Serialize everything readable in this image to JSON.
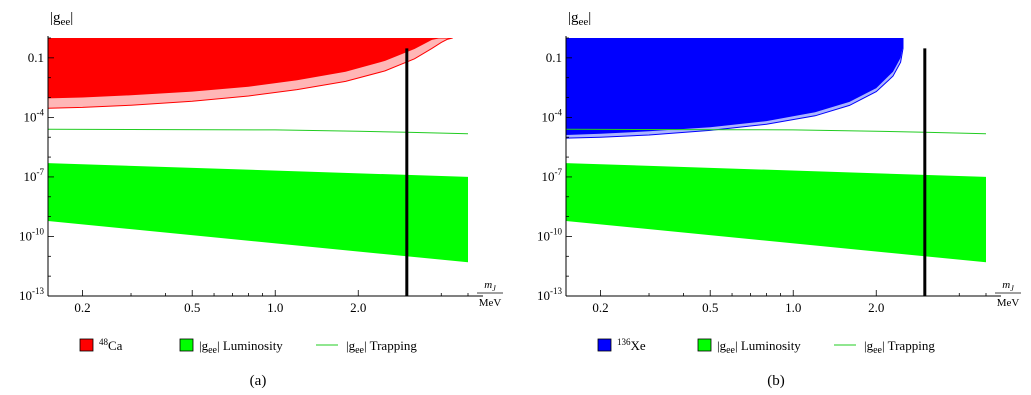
{
  "chart_data": [
    {
      "type": "area",
      "panel_label": "(a)",
      "ylabel": "|g_ee|",
      "xlabel": "m_J",
      "xunit": "MeV",
      "x_scale": "log",
      "y_scale": "log",
      "xlim": [
        0.15,
        5.0
      ],
      "ylim": [
        1e-13,
        1.0
      ],
      "x_ticks": [
        "0.2",
        "0.5",
        "1.0",
        "2.0"
      ],
      "x_tick_values": [
        0.2,
        0.5,
        1.0,
        2.0
      ],
      "y_ticks": [
        "0.1",
        "10^-4",
        "10^-7",
        "10^-10",
        "10^-13"
      ],
      "vertical_line_x": 3.0,
      "series": [
        {
          "name": "48Ca",
          "color": "#ff0000",
          "light_color": "#ffb6b6",
          "x": [
            0.15,
            0.2,
            0.3,
            0.5,
            0.8,
            1.2,
            1.8,
            2.5,
            3.2,
            3.7,
            4.0,
            4.2,
            4.4
          ],
          "lower": [
            0.00029,
            0.00032,
            0.00041,
            0.00065,
            0.0012,
            0.0025,
            0.0065,
            0.022,
            0.09,
            0.3,
            0.6,
            0.85,
            1.0
          ],
          "inner": [
            0.0009,
            0.001,
            0.0013,
            0.002,
            0.0035,
            0.0075,
            0.02,
            0.07,
            0.28,
            0.8,
            1.0,
            1.0,
            1.0
          ],
          "upper": [
            1.0,
            1.0,
            1.0,
            1.0,
            1.0,
            1.0,
            1.0,
            1.0,
            1.0,
            1.0,
            1.0,
            1.0,
            1.0
          ]
        },
        {
          "name": "|g_ee| Luminosity",
          "color": "#00ff00",
          "x": [
            0.15,
            5.0
          ],
          "lower": [
            6e-10,
            5e-12
          ],
          "upper": [
            5e-07,
            1e-07
          ]
        },
        {
          "name": "|g_ee| Trapping",
          "color": "#22cc22",
          "x": [
            0.15,
            0.3,
            0.6,
            1.0,
            2.0,
            3.0,
            5.0
          ],
          "values": [
            2.5e-05,
            2.45e-05,
            2.4e-05,
            2.35e-05,
            2e-05,
            1.8e-05,
            1.5e-05
          ]
        }
      ],
      "legend": [
        {
          "label_sup": "48",
          "label": "Ca",
          "color": "#ff0000",
          "kind": "box"
        },
        {
          "label": "|g_ee| Luminosity",
          "color": "#00ff00",
          "kind": "box"
        },
        {
          "label": "|g_ee| Trapping",
          "color": "#22cc22",
          "kind": "line"
        }
      ]
    },
    {
      "type": "area",
      "panel_label": "(b)",
      "ylabel": "|g_ee|",
      "xlabel": "m_J",
      "xunit": "MeV",
      "x_scale": "log",
      "y_scale": "log",
      "xlim": [
        0.15,
        5.0
      ],
      "ylim": [
        1e-13,
        1.0
      ],
      "x_ticks": [
        "0.2",
        "0.5",
        "1.0",
        "2.0"
      ],
      "x_tick_values": [
        0.2,
        0.5,
        1.0,
        2.0
      ],
      "y_ticks": [
        "0.1",
        "10^-4",
        "10^-7",
        "10^-10",
        "10^-13"
      ],
      "vertical_line_x": 3.0,
      "series": [
        {
          "name": "136Xe",
          "color": "#0000ff",
          "light_color": "#aab4ff",
          "x": [
            0.15,
            0.2,
            0.3,
            0.5,
            0.8,
            1.2,
            1.6,
            2.0,
            2.3,
            2.45,
            2.5
          ],
          "lower": [
            9e-06,
            1e-05,
            1.3e-05,
            2.2e-05,
            4.5e-05,
            0.00012,
            0.0004,
            0.002,
            0.012,
            0.06,
            0.3
          ],
          "inner": [
            1.3e-05,
            1.5e-05,
            2e-05,
            3.2e-05,
            6.5e-05,
            0.00018,
            0.0006,
            0.003,
            0.02,
            0.1,
            0.4
          ],
          "upper": [
            1.0,
            1.0,
            1.0,
            1.0,
            1.0,
            1.0,
            1.0,
            1.0,
            1.0,
            1.0,
            1.0
          ]
        },
        {
          "name": "|g_ee| Luminosity",
          "color": "#00ff00",
          "x": [
            0.15,
            5.0
          ],
          "lower": [
            6e-10,
            5e-12
          ],
          "upper": [
            5e-07,
            1e-07
          ]
        },
        {
          "name": "|g_ee| Trapping",
          "color": "#22cc22",
          "x": [
            0.15,
            0.3,
            0.6,
            1.0,
            2.0,
            3.0,
            5.0
          ],
          "values": [
            2.5e-05,
            2.45e-05,
            2.4e-05,
            2.35e-05,
            2e-05,
            1.8e-05,
            1.5e-05
          ]
        }
      ],
      "legend": [
        {
          "label_sup": "136",
          "label": "Xe",
          "color": "#0000ff",
          "kind": "box"
        },
        {
          "label": "|g_ee| Luminosity",
          "color": "#00ff00",
          "kind": "box"
        },
        {
          "label": "|g_ee| Trapping",
          "color": "#22cc22",
          "kind": "line"
        }
      ]
    }
  ]
}
